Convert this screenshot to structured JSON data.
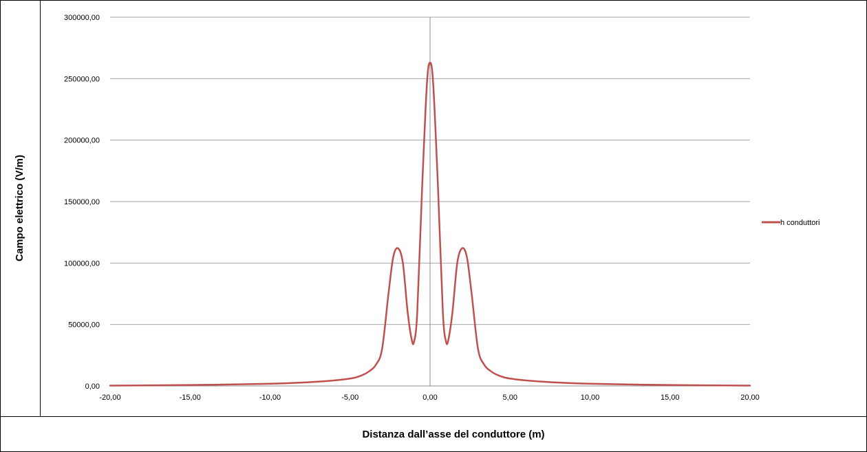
{
  "chart_data": {
    "type": "line",
    "xlabel": "Distanza dall’asse del conduttore (m)",
    "ylabel": "Campo elettrico (V/m)",
    "xlim": [
      -20,
      20
    ],
    "ylim": [
      0,
      300000
    ],
    "xticks": [
      "-20,00",
      "-15,00",
      "-10,00",
      "-5,00",
      "0,00",
      "5,00",
      "10,00",
      "15,00",
      "20,00"
    ],
    "yticks": [
      "0,00",
      "50000,00",
      "100000,00",
      "150000,00",
      "200000,00",
      "250000,00",
      "300000,00"
    ],
    "grid": true,
    "legend_position": "right",
    "series": [
      {
        "name": "h conduttori",
        "color": "#c0504d",
        "x": [
          -20,
          -15,
          -10,
          -7,
          -5,
          -4.2,
          -3.8,
          -3.4,
          -3.0,
          -2.6,
          -2.3,
          -2.0,
          -1.7,
          -1.4,
          -1.15,
          -1.0,
          -0.8,
          -0.5,
          -0.2,
          0.0,
          0.2,
          0.5,
          0.8,
          1.0,
          1.15,
          1.4,
          1.7,
          2.0,
          2.3,
          2.6,
          3.0,
          3.4,
          3.8,
          4.2,
          5,
          7,
          10,
          15,
          20
        ],
        "y": [
          300,
          800,
          1800,
          3500,
          6000,
          9000,
          12000,
          17000,
          30000,
          75000,
          105000,
          112000,
          100000,
          60000,
          38000,
          36000,
          60000,
          160000,
          245000,
          263000,
          245000,
          160000,
          60000,
          36000,
          38000,
          60000,
          100000,
          112000,
          105000,
          75000,
          30000,
          17000,
          12000,
          9000,
          6000,
          3500,
          1800,
          800,
          300
        ]
      }
    ]
  }
}
